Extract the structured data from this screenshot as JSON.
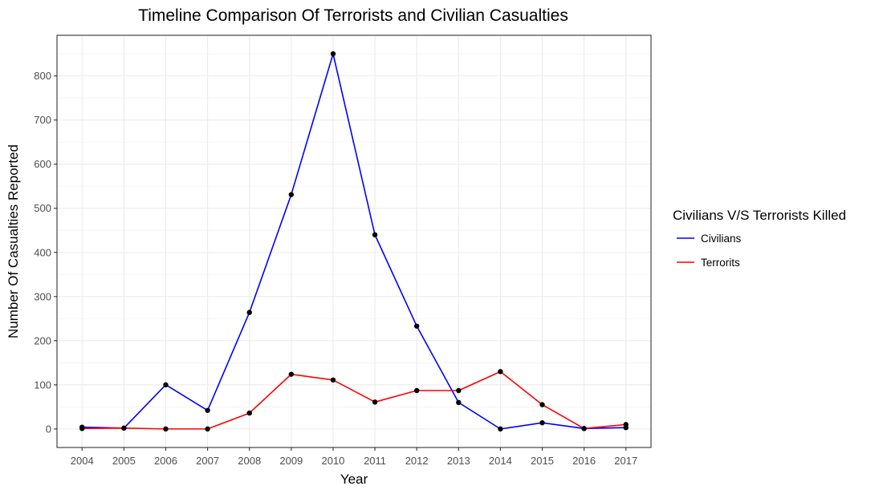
{
  "chart_data": {
    "type": "line",
    "title": "Timeline Comparison Of Terrorists and Civilian Casualties",
    "xlabel": "Year",
    "ylabel": "Number Of Casualties Reported",
    "x": [
      2004,
      2005,
      2006,
      2007,
      2008,
      2009,
      2010,
      2011,
      2012,
      2013,
      2014,
      2015,
      2016,
      2017
    ],
    "xlim": [
      2003.4,
      2017.6
    ],
    "ylim": [
      -42,
      892
    ],
    "yticks": [
      0,
      100,
      200,
      300,
      400,
      500,
      600,
      700,
      800
    ],
    "grid": true,
    "legend": {
      "title": "Civilians V/S Terrorists Killed",
      "position": "right"
    },
    "series": [
      {
        "name": "Civilians",
        "color": "#0000ff",
        "values": [
          4,
          2,
          100,
          42,
          264,
          531,
          850,
          440,
          233,
          60,
          0,
          14,
          1,
          3
        ]
      },
      {
        "name": "Terrorits",
        "color": "#ff0000",
        "values": [
          1,
          2,
          0,
          0,
          36,
          124,
          111,
          61,
          87,
          87,
          130,
          55,
          1,
          10
        ]
      }
    ],
    "point_color": "#000000"
  }
}
